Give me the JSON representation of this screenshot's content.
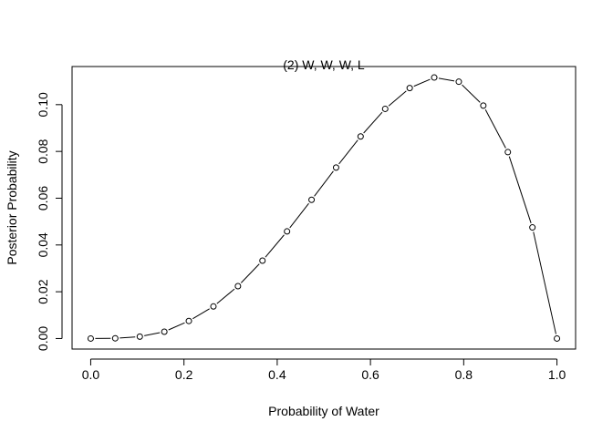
{
  "chart_data": {
    "type": "line",
    "title": "(2) W, W, W, L",
    "xlabel": "Probability of Water",
    "ylabel": "Posterior Probability",
    "xlim": [
      -0.04,
      1.04
    ],
    "ylim": [
      -0.0045,
      0.1163
    ],
    "x_ticks": [
      0.0,
      0.2,
      0.4,
      0.6,
      0.8,
      1.0
    ],
    "x_tick_labels": [
      "0.0",
      "0.2",
      "0.4",
      "0.6",
      "0.8",
      "1.0"
    ],
    "y_ticks": [
      0.0,
      0.02,
      0.04,
      0.06,
      0.08,
      0.1
    ],
    "y_tick_labels": [
      "0.00",
      "0.02",
      "0.04",
      "0.06",
      "0.08",
      "0.10"
    ],
    "grid": false,
    "legend": "none",
    "marker": "open-circle",
    "line_style": "solid-with-gaps",
    "x": [
      0.0,
      0.0526,
      0.1053,
      0.1579,
      0.2105,
      0.2632,
      0.3158,
      0.3684,
      0.4211,
      0.4737,
      0.5263,
      0.5789,
      0.6316,
      0.6842,
      0.7368,
      0.7895,
      0.8421,
      0.8947,
      0.9474,
      1.0
    ],
    "y": [
      0.0,
      0.0001,
      0.0008,
      0.0029,
      0.0075,
      0.0137,
      0.0224,
      0.0333,
      0.0458,
      0.0593,
      0.0731,
      0.0864,
      0.0982,
      0.1071,
      0.1116,
      0.1098,
      0.0996,
      0.0797,
      0.0475,
      0.0
    ]
  }
}
